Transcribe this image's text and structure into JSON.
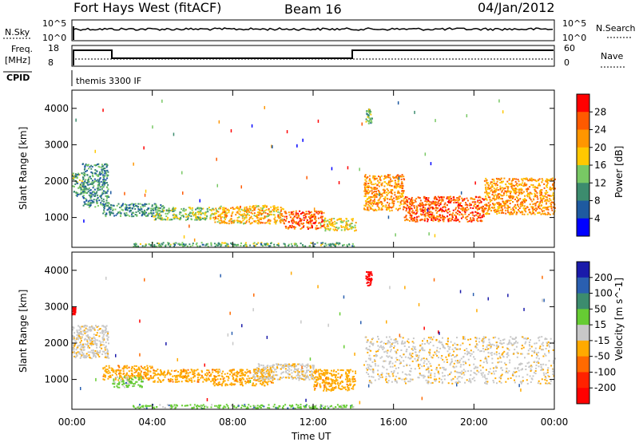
{
  "header": {
    "station": "Fort Hays West (fitACF)",
    "beam": "Beam 16",
    "date": "04/Jan/2012"
  },
  "panels": {
    "nsky": {
      "left_label": "N.Sky",
      "right_label": "N.Search",
      "tick_top": "10^5",
      "tick_bottom": "10^0",
      "right_tick_top": "10^5",
      "right_tick_bottom": "10^0"
    },
    "freq": {
      "label": "Freq.",
      "unit": "[MHz]",
      "tick_top": "18",
      "tick_bottom": "8",
      "right_label": "Nave",
      "right_tick_top": "60",
      "right_tick_bottom": "0"
    },
    "cpid": {
      "label": "CPID",
      "mode_text": "themis 3300 IF"
    },
    "power_colorbar": {
      "label": "Power [dB]",
      "ticks": [
        "28",
        "24",
        "20",
        "16",
        "12",
        "8",
        "4"
      ],
      "colors": [
        "#ff0000",
        "#ff5a00",
        "#ff9600",
        "#ffc800",
        "#78c864",
        "#3c8c6e",
        "#1e5aa0",
        "#0000ff"
      ]
    },
    "velocity_colorbar": {
      "label": "Velocity [m s^-1]",
      "ticks": [
        "200",
        "100",
        "50",
        "15",
        "-15",
        "-50",
        "-100",
        "-200"
      ],
      "colors": [
        "#1a1aaa",
        "#2a5fb0",
        "#3c8c6e",
        "#66cc33",
        "#c8c8c8",
        "#ffaa00",
        "#ff6a00",
        "#ff2200",
        "#ff0000"
      ]
    },
    "slant_axis": {
      "label": "Slant Range [km]",
      "ticks": [
        "4000",
        "3000",
        "2000",
        "1000"
      ]
    },
    "time_axis": {
      "label": "Time UT",
      "ticks": [
        "00:00",
        "04:00",
        "08:00",
        "12:00",
        "16:00",
        "20:00",
        "00:00"
      ]
    }
  },
  "chart_data": [
    {
      "type": "heatmap",
      "title": "Power",
      "xlabel": "Time UT",
      "ylabel": "Slant Range [km]",
      "zlabel": "Power [dB]",
      "xlim": [
        0,
        24
      ],
      "ylim": [
        180,
        4500
      ],
      "zlim": [
        0,
        32
      ],
      "bands": [
        {
          "x": [
            0.0,
            0.6
          ],
          "y": [
            1600,
            2250
          ],
          "z": 12
        },
        {
          "x": [
            0.5,
            1.8
          ],
          "y": [
            1300,
            2500
          ],
          "z": 10
        },
        {
          "x": [
            1.5,
            4.5
          ],
          "y": [
            1050,
            1400
          ],
          "z": 10
        },
        {
          "x": [
            4.0,
            7.0
          ],
          "y": [
            950,
            1300
          ],
          "z": 14
        },
        {
          "x": [
            7.0,
            10.5
          ],
          "y": [
            850,
            1350
          ],
          "z": 20
        },
        {
          "x": [
            10.5,
            12.5
          ],
          "y": [
            700,
            1200
          ],
          "z": 26
        },
        {
          "x": [
            12.5,
            14.1
          ],
          "y": [
            650,
            1000
          ],
          "z": 18
        },
        {
          "x": [
            14.5,
            16.5
          ],
          "y": [
            1200,
            2200
          ],
          "z": 22
        },
        {
          "x": [
            16.5,
            20.5
          ],
          "y": [
            900,
            1600
          ],
          "z": 26
        },
        {
          "x": [
            20.5,
            24.0
          ],
          "y": [
            1100,
            2100
          ],
          "z": 22
        },
        {
          "x": [
            14.6,
            14.9
          ],
          "y": [
            3600,
            4000
          ],
          "z": 12
        },
        {
          "x": [
            3.0,
            14.0
          ],
          "y": [
            220,
            330
          ],
          "z": 12
        }
      ]
    },
    {
      "type": "heatmap",
      "title": "Velocity",
      "xlabel": "Time UT",
      "ylabel": "Slant Range [km]",
      "zlabel": "Velocity [m s^-1]",
      "xlim": [
        0,
        24
      ],
      "ylim": [
        180,
        4500
      ],
      "zlim": [
        -200,
        200
      ],
      "bands": [
        {
          "x": [
            0.0,
            1.8
          ],
          "y": [
            1600,
            2500
          ],
          "z": 0
        },
        {
          "x": [
            1.5,
            4.0
          ],
          "y": [
            1000,
            1400
          ],
          "z": -50
        },
        {
          "x": [
            2.0,
            3.5
          ],
          "y": [
            800,
            1100
          ],
          "z": 50
        },
        {
          "x": [
            4.0,
            7.0
          ],
          "y": [
            950,
            1300
          ],
          "z": -50
        },
        {
          "x": [
            7.0,
            10.0
          ],
          "y": [
            850,
            1300
          ],
          "z": -50
        },
        {
          "x": [
            9.0,
            12.0
          ],
          "y": [
            1000,
            1450
          ],
          "z": 0
        },
        {
          "x": [
            12.0,
            14.1
          ],
          "y": [
            700,
            1300
          ],
          "z": -50
        },
        {
          "x": [
            14.5,
            24.0
          ],
          "y": [
            900,
            2200
          ],
          "z": 0
        },
        {
          "x": [
            0.0,
            0.15
          ],
          "y": [
            2800,
            3000
          ],
          "z": -200
        },
        {
          "x": [
            14.6,
            14.9
          ],
          "y": [
            3600,
            4000
          ],
          "z": -200
        },
        {
          "x": [
            3.0,
            14.0
          ],
          "y": [
            220,
            330
          ],
          "z": 50
        }
      ]
    }
  ]
}
